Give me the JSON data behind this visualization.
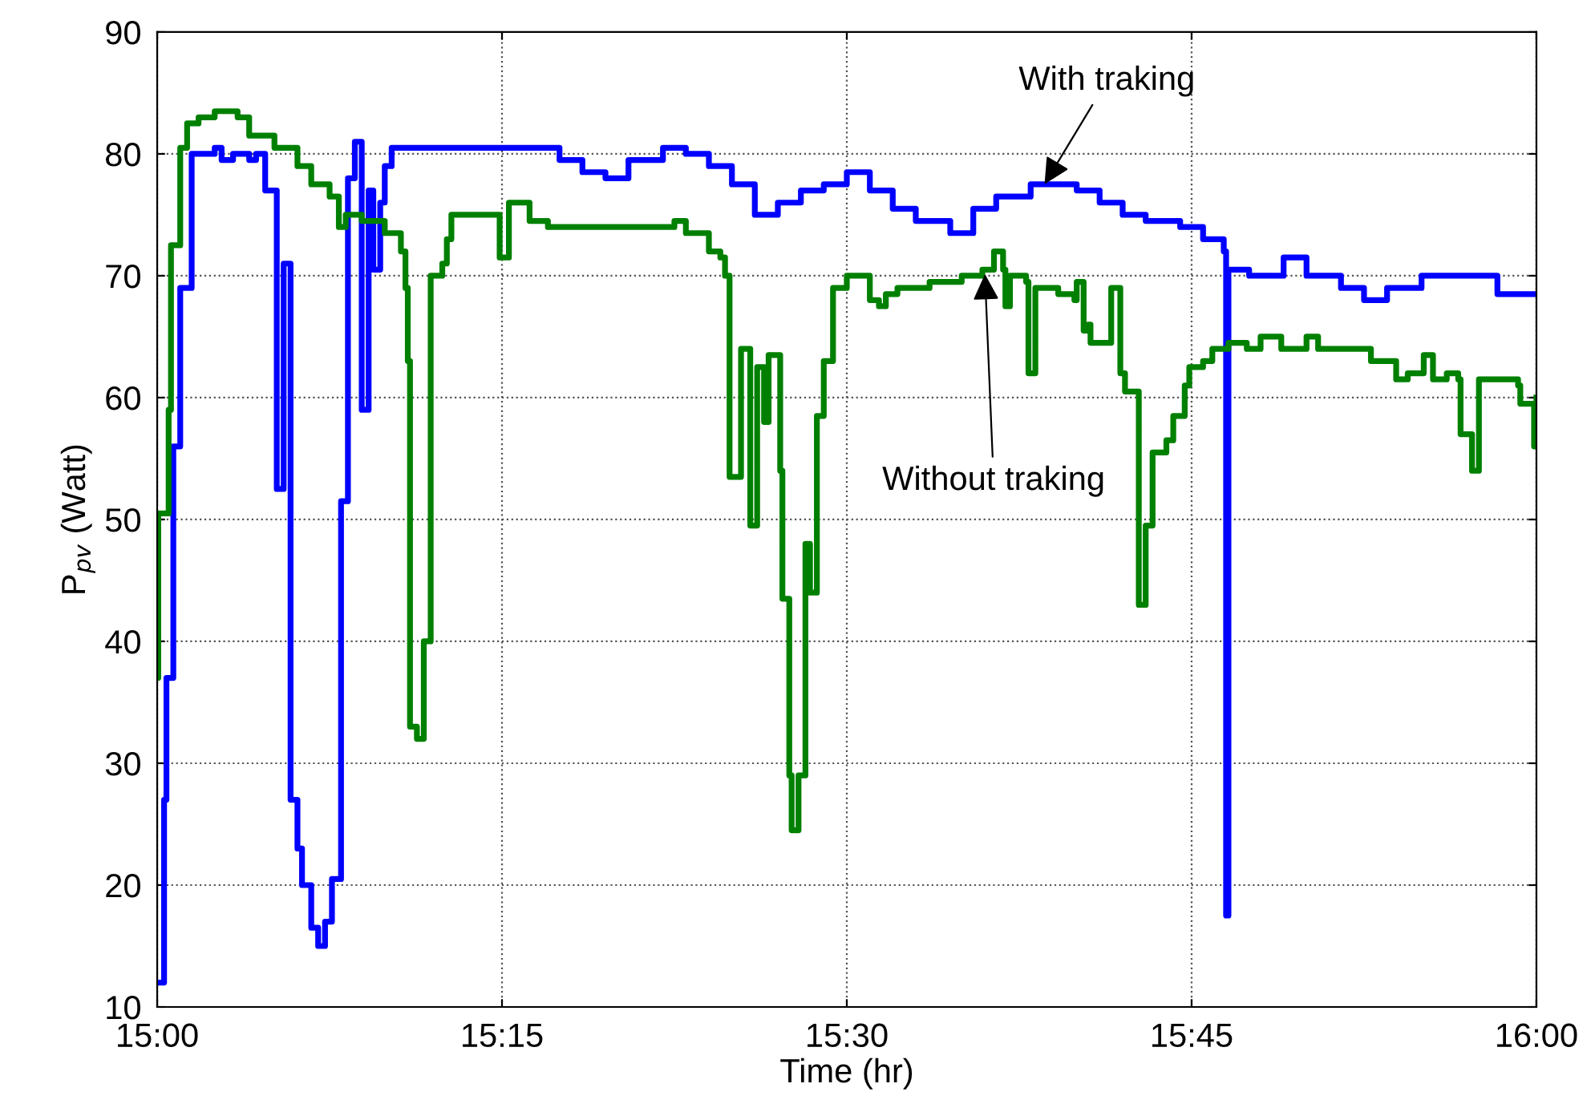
{
  "chart_data": {
    "type": "step",
    "xlabel": "Time (hr)",
    "ylabel": "P$_{pv}$ (Watt)",
    "xlim": [
      15,
      16
    ],
    "xticks": [
      {
        "value": 15,
        "label": "15:00"
      },
      {
        "value": 15.25,
        "label": "15:15"
      },
      {
        "value": 15.5,
        "label": "15:30"
      },
      {
        "value": 15.75,
        "label": "15:45"
      },
      {
        "value": 16,
        "label": "16:00"
      }
    ],
    "ylim": [
      10,
      90
    ],
    "yticks": [
      10,
      20,
      30,
      40,
      50,
      60,
      70,
      80,
      90
    ],
    "grid": true,
    "line_style": "solid",
    "marker": "none",
    "series": [
      {
        "color": "#0000ff",
        "x": [
          15.0,
          15.005,
          15.0067,
          15.0117,
          15.0167,
          15.025,
          15.0417,
          15.0467,
          15.055,
          15.0667,
          15.0717,
          15.0783,
          15.0867,
          15.0917,
          15.0967,
          15.1017,
          15.105,
          15.1117,
          15.1167,
          15.1217,
          15.1267,
          15.1333,
          15.1383,
          15.1433,
          15.1483,
          15.1533,
          15.1567,
          15.1617,
          15.165,
          15.17,
          15.2833,
          15.2917,
          15.3083,
          15.325,
          15.3417,
          15.3667,
          15.3833,
          15.4,
          15.4167,
          15.4333,
          15.45,
          15.4667,
          15.4833,
          15.5,
          15.5167,
          15.5333,
          15.55,
          15.575,
          15.5917,
          15.6083,
          15.6333,
          15.6667,
          15.6833,
          15.7,
          15.7167,
          15.7417,
          15.7583,
          15.7733,
          15.775,
          15.7767,
          15.7917,
          15.8167,
          15.8333,
          15.8583,
          15.875,
          15.8917,
          15.9167,
          15.95,
          15.9717,
          16.0
        ],
        "values": [
          12,
          27,
          37,
          56,
          69,
          80,
          80.5,
          79.5,
          80,
          79.5,
          80,
          77,
          52.5,
          71,
          27,
          23,
          20,
          16.5,
          15,
          17,
          20.5,
          51.5,
          78,
          81,
          59,
          77,
          70.5,
          76,
          79,
          80.5,
          80.5,
          79.5,
          78.5,
          78,
          79.5,
          80.5,
          80,
          79,
          77.5,
          75,
          76,
          77,
          77.5,
          78.5,
          77,
          75.5,
          74.5,
          73.5,
          75.5,
          76.5,
          77.5,
          77,
          76,
          75,
          74.5,
          74,
          73,
          72,
          17.5,
          70.5,
          70,
          71.5,
          70,
          69,
          68,
          69,
          70,
          70,
          68.5,
          68.5
        ]
      },
      {
        "color": "#008000",
        "x": [
          15.0,
          15.0008,
          15.0083,
          15.01,
          15.0167,
          15.0217,
          15.03,
          15.0417,
          15.0583,
          15.0667,
          15.085,
          15.1017,
          15.1117,
          15.125,
          15.1317,
          15.1367,
          15.1483,
          15.165,
          15.1767,
          15.18,
          15.1817,
          15.1833,
          15.1883,
          15.1933,
          15.1983,
          15.2067,
          15.21,
          15.2133,
          15.2483,
          15.255,
          15.27,
          15.2833,
          15.375,
          15.3833,
          15.4,
          15.4083,
          15.4117,
          15.415,
          15.4233,
          15.43,
          15.435,
          15.44,
          15.4433,
          15.4517,
          15.4533,
          15.4583,
          15.46,
          15.465,
          15.47,
          15.4733,
          15.4783,
          15.4833,
          15.49,
          15.5,
          15.5133,
          15.5167,
          15.5233,
          15.5283,
          15.5367,
          15.56,
          15.5833,
          15.5983,
          15.6067,
          15.6133,
          15.615,
          15.6183,
          15.63,
          15.6317,
          15.6367,
          15.6533,
          15.665,
          15.6667,
          15.6717,
          15.675,
          15.6767,
          15.6883,
          15.6917,
          15.6983,
          15.7017,
          15.7117,
          15.7167,
          15.7217,
          15.7317,
          15.7367,
          15.745,
          15.7483,
          15.7583,
          15.765,
          15.7767,
          15.79,
          15.8,
          15.815,
          15.8333,
          15.8417,
          15.86,
          15.88,
          15.8983,
          15.9067,
          15.9183,
          15.925,
          15.935,
          15.9433,
          15.945,
          15.9533,
          15.9583,
          15.9667,
          15.9867,
          15.9883,
          15.9983,
          16.0
        ],
        "values": [
          37,
          50.5,
          59,
          72.5,
          80.5,
          82.5,
          83,
          83.5,
          83,
          81.5,
          80.5,
          79,
          77.5,
          76.5,
          74,
          75,
          74.5,
          73.5,
          72,
          69,
          63,
          33,
          32,
          40,
          70,
          71,
          73,
          75,
          71.5,
          76,
          74.5,
          74,
          74.5,
          73.5,
          72,
          71.5,
          70,
          53.5,
          64,
          49.5,
          62.5,
          58,
          63.5,
          54,
          43.5,
          29,
          24.5,
          29,
          48,
          44,
          58.5,
          63,
          69,
          70,
          70,
          68,
          67.5,
          68.5,
          69,
          69.5,
          70,
          70.5,
          72,
          70.5,
          67.5,
          70,
          69.5,
          62,
          69,
          68.5,
          68,
          69.5,
          65.5,
          66,
          64.5,
          64.5,
          69,
          62,
          60.5,
          43,
          49.5,
          55.5,
          56.5,
          58.5,
          61,
          62.5,
          63,
          64,
          64.5,
          64,
          65,
          64,
          65,
          64,
          64,
          63,
          61.5,
          62,
          63.5,
          61.5,
          62,
          61.5,
          57,
          54,
          61.5,
          61.5,
          61,
          59.5,
          56,
          60
        ]
      }
    ],
    "annotations": [
      {
        "text": "With traking",
        "x": 15.6417,
        "y": 77.2
      },
      {
        "text": "Without traking",
        "x": 15.6,
        "y": 70.5
      }
    ]
  }
}
